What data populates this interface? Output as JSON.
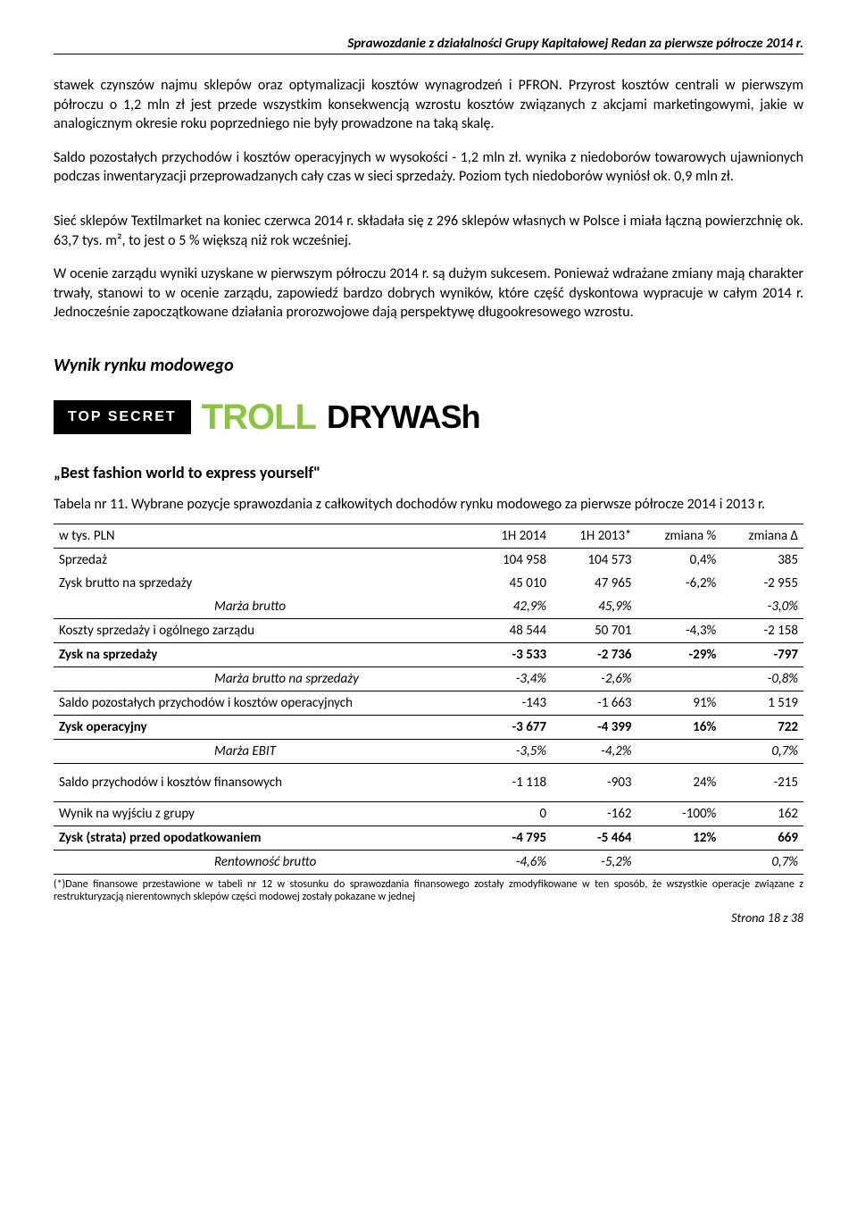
{
  "header": "Sprawozdanie z działalności Grupy Kapitałowej Redan za pierwsze półrocze 2014 r.",
  "para1": "stawek czynszów najmu sklepów oraz optymalizacji kosztów wynagrodzeń i PFRON. Przyrost kosztów centrali w pierwszym półroczu o 1,2 mln zł jest przede wszystkim konsekwencją wzrostu kosztów związanych z akcjami marketingowymi, jakie w analogicznym okresie roku poprzedniego nie były prowadzone na taką skalę.",
  "para2": "Saldo pozostałych przychodów i kosztów operacyjnych w wysokości - 1,2 mln zł. wynika z niedoborów towarowych ujawnionych podczas inwentaryzacji przeprowadzanych cały czas w sieci sprzedaży. Poziom tych niedoborów wyniósł ok. 0,9 mln zł.",
  "para3": "Sieć sklepów Textilmarket na koniec czerwca 2014 r. składała się z 296 sklepów własnych w Polsce i miała łączną powierzchnię ok. 63,7 tys. m², to jest o 5 % większą niż rok wcześniej.",
  "para4": "W ocenie zarządu wyniki uzyskane w pierwszym półroczu 2014 r. są dużym sukcesem. Ponieważ wdrażane zmiany mają charakter trwały, stanowi to w ocenie zarządu, zapowiedź bardzo dobrych wyników, które część dyskontowa wypracuje w całym 2014 r. Jednocześnie zapoczątkowane działania prorozwojowe dają perspektywę długookresowego wzrostu.",
  "section_heading": "Wynik rynku modowego",
  "logos": {
    "topsecret": "TOP SECRET",
    "troll": "TROLL",
    "drywash": "DRYWASh"
  },
  "subheading": "„Best fashion world to express yourself\"",
  "table_caption": "Tabela nr 11. Wybrane pozycje sprawozdania z całkowitych dochodów rynku modowego za pierwsze półrocze 2014 i 2013 r.",
  "table": {
    "columns": [
      "w tys. PLN",
      "1H 2014",
      "1H 2013*",
      "zmiana %",
      "zmiana Δ"
    ],
    "rows": [
      {
        "label": "Sprzedaż",
        "c1": "104 958",
        "c2": "104 573",
        "c3": "0,4%",
        "c4": "385",
        "sep": false,
        "bold": false
      },
      {
        "label": "Zysk brutto na sprzedaży",
        "c1": "45 010",
        "c2": "47 965",
        "c3": "-6,2%",
        "c4": "-2 955",
        "sep": false,
        "bold": false
      },
      {
        "label_indent": "Marża brutto",
        "c1": "42,9%",
        "c2": "45,9%",
        "c3": "",
        "c4": "-3,0%",
        "sep": true,
        "italic": true
      },
      {
        "label": "Koszty sprzedaży i ogólnego zarządu",
        "c1": "48 544",
        "c2": "50 701",
        "c3": "-4,3%",
        "c4": "-2 158",
        "sep": true,
        "bold": false
      },
      {
        "label": "Zysk na sprzedaży",
        "c1": "-3 533",
        "c2": "-2 736",
        "c3": "-29%",
        "c4": "-797",
        "sep": true,
        "bold": true
      },
      {
        "label_indent": "Marża brutto na sprzedaży",
        "c1": "-3,4%",
        "c2": "-2,6%",
        "c3": "",
        "c4": "-0,8%",
        "sep": true,
        "italic": true
      },
      {
        "label": "Saldo pozostałych przychodów i kosztów operacyjnych",
        "c1": "-143",
        "c2": "-1 663",
        "c3": "91%",
        "c4": "1 519",
        "sep": true,
        "bold": false
      },
      {
        "label": "Zysk operacyjny",
        "c1": "-3 677",
        "c2": "-4 399",
        "c3": "16%",
        "c4": "722",
        "sep": true,
        "bold": true
      },
      {
        "label_indent": "Marża EBIT",
        "c1": "-3,5%",
        "c2": "-4,2%",
        "c3": "",
        "c4": "0,7%",
        "sep": true,
        "italic": true
      },
      {
        "label": "Saldo przychodów i kosztów finansowych",
        "c1": "-1 118",
        "c2": "-903",
        "c3": "24%",
        "c4": "-215",
        "sep": true,
        "bold": false,
        "pad": true
      },
      {
        "label": "Wynik na wyjściu z grupy",
        "c1": "0",
        "c2": "-162",
        "c3": "-100%",
        "c4": "162",
        "sep": true,
        "bold": false
      },
      {
        "label": "Zysk (strata) przed opodatkowaniem",
        "c1": "-4 795",
        "c2": "-5 464",
        "c3": "12%",
        "c4": "669",
        "sep": true,
        "bold": true
      },
      {
        "label_indent": "Rentowność brutto",
        "c1": "-4,6%",
        "c2": "-5,2%",
        "c3": "",
        "c4": "0,7%",
        "sep": true,
        "italic": true
      }
    ]
  },
  "footnote": "(*)Dane finansowe przestawione w tabeli nr 12 w stosunku do sprawozdania finansowego zostały zmodyfikowane w ten sposób, że wszystkie operacje związane z restrukturyzacją nierentownych sklepów części modowej zostały pokazane w jednej",
  "page_num": "Strona 18 z 38"
}
